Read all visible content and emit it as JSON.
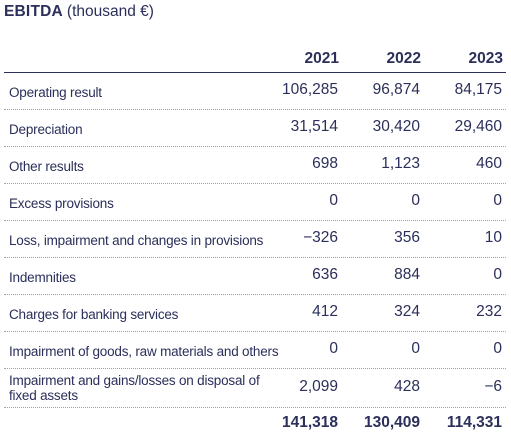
{
  "title": {
    "bold": "EBITDA",
    "unit": "(thousand  €)"
  },
  "columns": [
    "2021",
    "2022",
    "2023"
  ],
  "rows": [
    {
      "label": "Operating result",
      "values": [
        "106,285",
        "96,874",
        "84,175"
      ]
    },
    {
      "label": "Depreciation",
      "values": [
        "31,514",
        "30,420",
        "29,460"
      ]
    },
    {
      "label": "Other results",
      "values": [
        "698",
        "1,123",
        "460"
      ]
    },
    {
      "label": "Excess provisions",
      "values": [
        "0",
        "0",
        "0"
      ]
    },
    {
      "label": "Loss, impairment and changes in provisions",
      "values": [
        "−326",
        "356",
        "10"
      ]
    },
    {
      "label": "Indemnities",
      "values": [
        "636",
        "884",
        "0"
      ]
    },
    {
      "label": "Charges for banking services",
      "values": [
        "412",
        "324",
        "232"
      ]
    },
    {
      "label": "Impairment of goods, raw materials and others",
      "values": [
        "0",
        "0",
        "0"
      ]
    },
    {
      "label": "Impairment and gains/losses on disposal of fixed assets",
      "values": [
        "2,099",
        "428",
        "−6"
      ]
    }
  ],
  "totals": [
    "141,318",
    "130,409",
    "114,331"
  ],
  "colors": {
    "text": "#2b2f5a",
    "rule": "#2b2f5a",
    "dotted": "#9a9cb8"
  }
}
